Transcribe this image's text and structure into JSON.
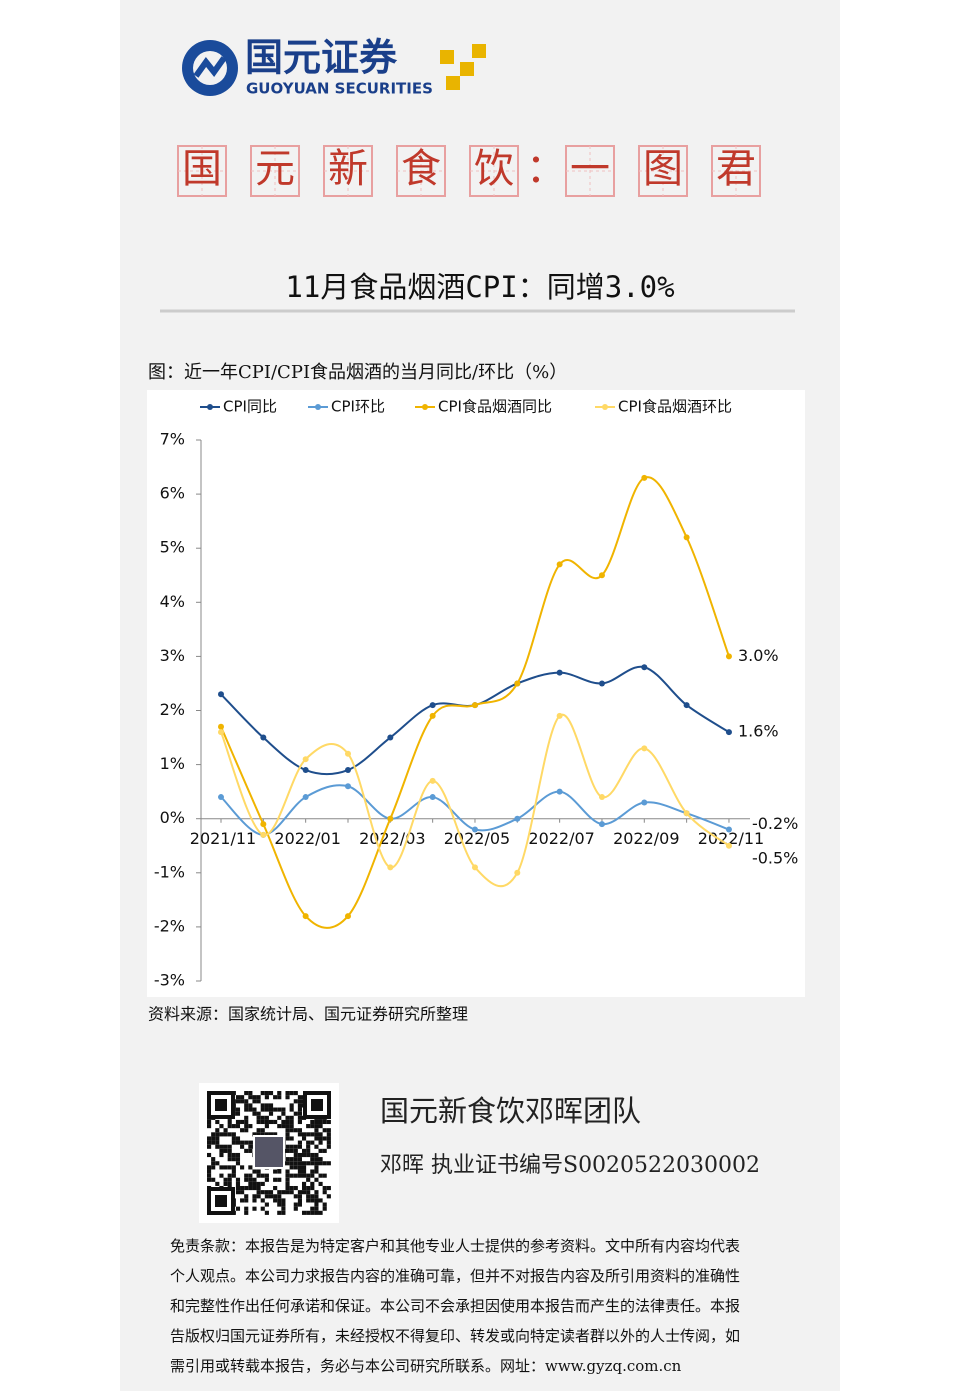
{
  "logo": {
    "name": "国元证券",
    "english": "GUOYUAN SECURITIES"
  },
  "banner": {
    "chars": [
      "国",
      "元",
      "新",
      "食",
      "饮",
      "：",
      "一",
      "图",
      "君"
    ]
  },
  "headline": "11月食品烟酒CPI：同增3.0%",
  "chart_data": {
    "type": "line",
    "title": "图：近一年CPI/CPI食品烟酒的当月同比/环比（%）",
    "categories": [
      "2021/11",
      null,
      "2022/01",
      null,
      "2022/03",
      null,
      "2022/05",
      null,
      "2022/07",
      null,
      "2022/09",
      null,
      "2022/11"
    ],
    "series": [
      {
        "name": "CPI同比",
        "color": "#1f4e8c",
        "values": [
          2.3,
          1.5,
          0.9,
          0.9,
          1.5,
          2.1,
          2.1,
          2.5,
          2.7,
          2.5,
          2.8,
          2.1,
          1.6
        ],
        "value_labels": [
          null,
          null,
          null,
          null,
          null,
          null,
          null,
          null,
          null,
          null,
          null,
          null,
          "1.6%"
        ]
      },
      {
        "name": "CPI环比",
        "color": "#5b9bd5",
        "values": [
          0.4,
          -0.3,
          0.4,
          0.6,
          0.0,
          0.4,
          -0.2,
          0.0,
          0.5,
          -0.1,
          0.3,
          0.1,
          -0.2
        ],
        "value_labels": [
          null,
          null,
          null,
          null,
          null,
          null,
          null,
          null,
          null,
          null,
          null,
          null,
          "-0.2%"
        ]
      },
      {
        "name": "CPI食品烟酒同比",
        "color": "#f0b400",
        "values": [
          1.7,
          -0.1,
          -1.8,
          -1.8,
          0.0,
          1.9,
          2.1,
          2.5,
          4.7,
          4.5,
          6.3,
          5.2,
          3.0
        ],
        "value_labels": [
          null,
          null,
          null,
          null,
          null,
          null,
          null,
          null,
          null,
          null,
          null,
          null,
          "3.0%"
        ]
      },
      {
        "name": "CPI食品烟酒环比",
        "color": "#ffd966",
        "values": [
          1.6,
          -0.3,
          1.1,
          1.2,
          -0.9,
          0.7,
          -0.9,
          -1.0,
          1.9,
          0.4,
          1.3,
          0.1,
          -0.5
        ],
        "value_labels": [
          null,
          null,
          null,
          null,
          null,
          null,
          null,
          null,
          null,
          null,
          null,
          null,
          "-0.5%"
        ]
      }
    ],
    "ylim": [
      -3,
      7
    ],
    "yticks": [
      {
        "value": -3,
        "label": "-3%"
      },
      {
        "value": -2,
        "label": "-2%"
      },
      {
        "value": -1,
        "label": "-1%"
      },
      {
        "value": 0,
        "label": "0%"
      },
      {
        "value": 1,
        "label": "1%"
      },
      {
        "value": 2,
        "label": "2%"
      },
      {
        "value": 3,
        "label": "3%"
      },
      {
        "value": 4,
        "label": "4%"
      },
      {
        "value": 5,
        "label": "5%"
      },
      {
        "value": 6,
        "label": "6%"
      },
      {
        "value": 7,
        "label": "7%"
      }
    ],
    "smooth": true,
    "source": "资料来源：国家统计局、国元证券研究所整理"
  },
  "team": {
    "name": "国元新食饮邓晖团队",
    "person": "邓晖  执业证书编号S0020522030002"
  },
  "disclaimer": [
    "免责条款：本报告是为特定客户和其他专业人士提供的参考资料。文中所有内容均代表",
    "个人观点。本公司力求报告内容的准确可靠，但并不对报告内容及所引用资料的准确性",
    "和完整性作出任何承诺和保证。本公司不会承担因使用本报告而产生的法律责任。本报",
    "告版权归国元证券所有，未经授权不得复印、转发或向特定读者群以外的人士传阅，如",
    "需引用或转载本报告，务必与本公司研究所联系。网址：www.gyzq.com.cn"
  ]
}
